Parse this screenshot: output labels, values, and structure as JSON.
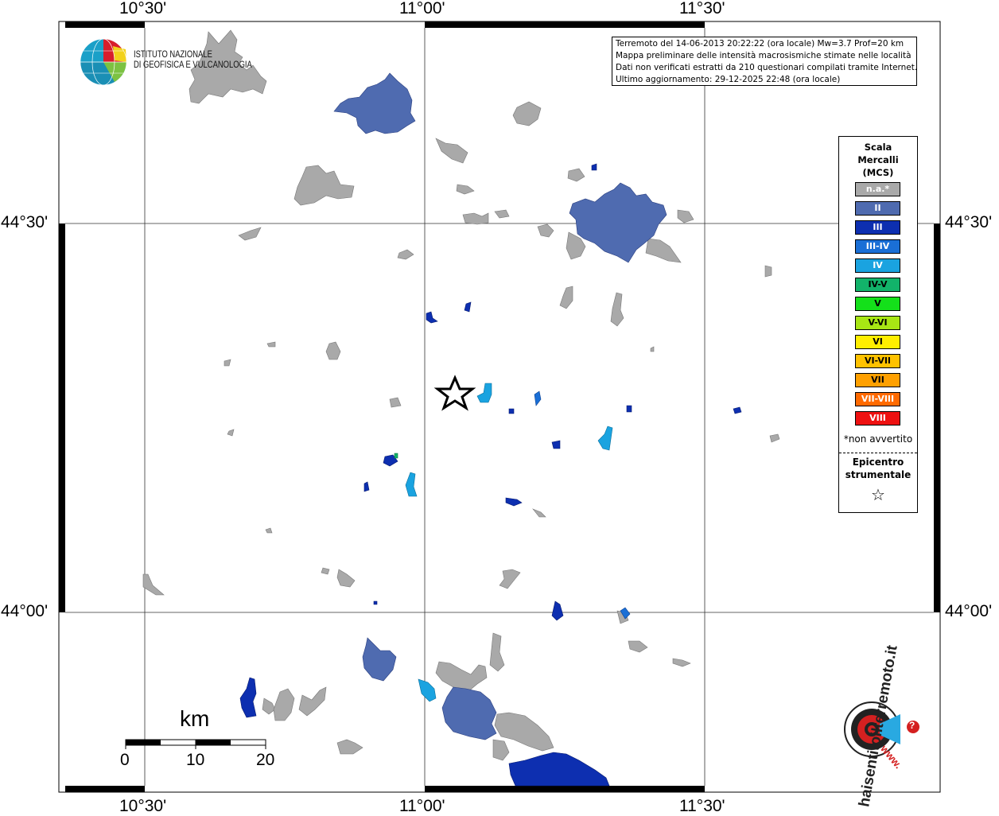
{
  "map": {
    "lon_ticks": [
      "10°30'",
      "11°00'",
      "11°30'"
    ],
    "lat_ticks": [
      "44°30'",
      "44°00'"
    ]
  },
  "info": {
    "line1": "Terremoto del 14-06-2013 20:22:22 (ora locale) Mw=3.7 Prof=20 km",
    "line2": "Mappa preliminare delle intensità macrosismiche stimate nelle località",
    "line3": "Dati non verificati estratti da 210 questionari compilati tramite Internet.",
    "line4": "Ultimo aggiornamento: 29-12-2025 22:48 (ora locale)"
  },
  "legend": {
    "title_line1": "Scala",
    "title_line2": "Mercalli",
    "title_line3": "(MCS)",
    "items": [
      {
        "label": "n.a.*",
        "color": "#a9a9a9"
      },
      {
        "label": "II",
        "color": "#4f6bb0"
      },
      {
        "label": "III",
        "color": "#0d2fb0"
      },
      {
        "label": "III-IV",
        "color": "#1a6fd6"
      },
      {
        "label": "IV",
        "color": "#1aa3e0"
      },
      {
        "label": "IV-V",
        "color": "#12b36a"
      },
      {
        "label": "V",
        "color": "#14e01a"
      },
      {
        "label": "V-VI",
        "color": "#a8e614"
      },
      {
        "label": "VI",
        "color": "#ffee00"
      },
      {
        "label": "VI-VII",
        "color": "#ffc200"
      },
      {
        "label": "VII",
        "color": "#ffa000"
      },
      {
        "label": "VII-VIII",
        "color": "#ff6a00"
      },
      {
        "label": "VIII",
        "color": "#ee1111"
      }
    ],
    "note": "*non avvertito",
    "epicenter_line1": "Epicentro",
    "epicenter_line2": "strumentale"
  },
  "logo": {
    "ingv_line1": "ISTITUTO NAZIONALE",
    "ingv_line2": "DI GEOFISICA E VULCANOLOGIA",
    "hsit_line1": "haisentitoilterremoto.it",
    "hsit_line2": "www.",
    "hsit_q": "?"
  },
  "scalebar": {
    "unit": "km",
    "labels": [
      "0",
      "10",
      "20"
    ]
  },
  "colors": {
    "na": "#a9a9a9",
    "II": "#4f6bb0",
    "III": "#0d2fb0",
    "III-IV": "#1a6fd6",
    "IV": "#1aa3e0",
    "IV-V": "#12b36a"
  }
}
